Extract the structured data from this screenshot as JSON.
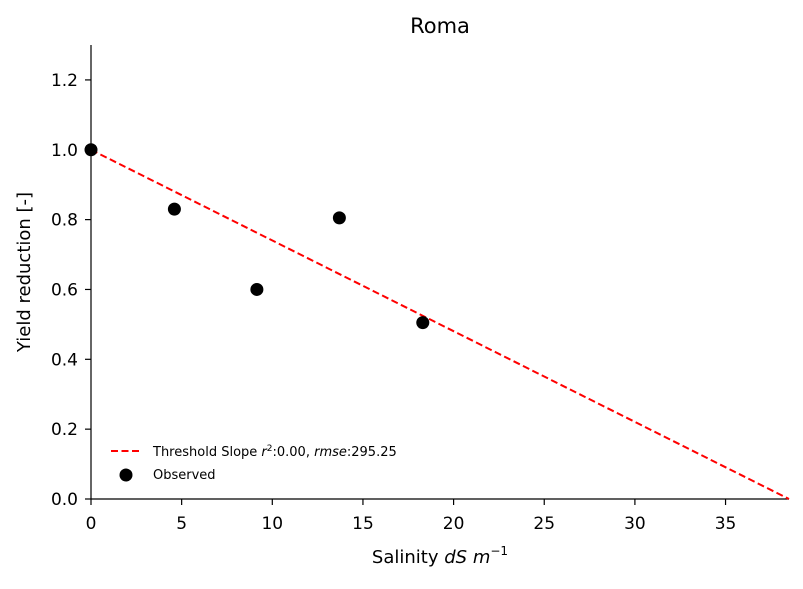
{
  "chart_data": {
    "type": "scatter",
    "title": "Roma",
    "xlabel": {
      "prefix": "Salinity ",
      "unit_var": "dS",
      "unit_m": "m",
      "unit_exp": "−1"
    },
    "ylabel": "Yield reduction [-]",
    "xlim": [
      0,
      38.5
    ],
    "ylim": [
      0,
      1.3
    ],
    "xticks": [
      0,
      5,
      10,
      15,
      20,
      25,
      30,
      35
    ],
    "xtick_labels": [
      "0",
      "5",
      "10",
      "15",
      "20",
      "25",
      "30",
      "35"
    ],
    "yticks": [
      0.0,
      0.2,
      0.4,
      0.6,
      0.8,
      1.0,
      1.2
    ],
    "ytick_labels": [
      "0.0",
      "0.2",
      "0.4",
      "0.6",
      "0.8",
      "1.0",
      "1.2"
    ],
    "grid": false,
    "legend_position": "lower-left",
    "series": [
      {
        "name": "Observed",
        "kind": "scatter",
        "color": "#000000",
        "points": [
          [
            0,
            1.0
          ],
          [
            4.6,
            0.83
          ],
          [
            9.15,
            0.6
          ],
          [
            13.7,
            0.805
          ],
          [
            18.3,
            0.505
          ]
        ]
      },
      {
        "name": "Threshold Slope",
        "kind": "line",
        "style": "dashed",
        "color": "#ff0000",
        "points": [
          [
            0,
            1.0
          ],
          [
            38.5,
            0.0
          ]
        ],
        "legend_parts": {
          "label": "Threshold Slope ",
          "r2_var": "r",
          "r2_sup": "2",
          "r2_val": ":0.00, ",
          "rmse_var": "rmse",
          "rmse_val": ":295.25"
        }
      }
    ]
  }
}
